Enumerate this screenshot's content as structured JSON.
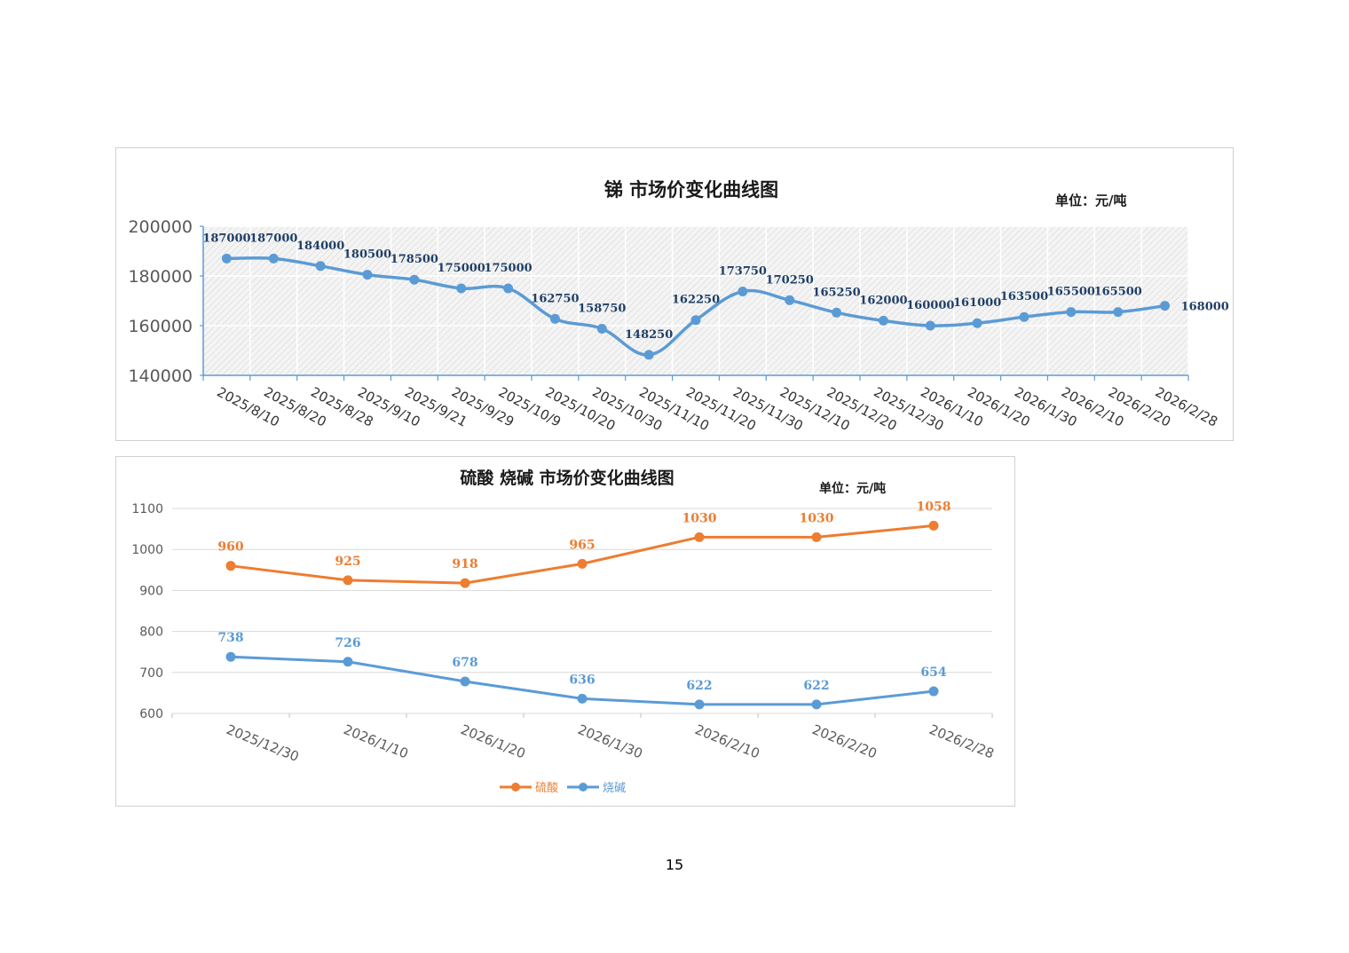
{
  "page_number": "15",
  "chart_data": [
    {
      "type": "line",
      "title": "锑 市场价变化曲线图",
      "unit_label": "单位：元/吨",
      "xlabel": "",
      "ylabel": "",
      "ylim": [
        140000,
        200000
      ],
      "yticks": [
        140000,
        160000,
        180000,
        200000
      ],
      "grid": "hatched plot area",
      "categories": [
        "2025/8/10",
        "2025/8/20",
        "2025/8/28",
        "2025/9/10",
        "2025/9/21",
        "2025/9/29",
        "2025/10/9",
        "2025/10/20",
        "2025/10/30",
        "2025/11/10",
        "2025/11/20",
        "2025/11/30",
        "2025/12/10",
        "2025/12/20",
        "2025/12/30",
        "2026/1/10",
        "2026/1/20",
        "2026/1/30",
        "2026/2/10",
        "2026/2/20",
        "2026/2/28"
      ],
      "series": [
        {
          "values": [
            187000,
            187000,
            184000,
            180500,
            178500,
            175000,
            175000,
            162750,
            158750,
            148250,
            162250,
            173750,
            170250,
            165250,
            162000,
            160000,
            161000,
            163500,
            165500,
            165500,
            168000
          ],
          "color": "#5b9bd5",
          "label_color": "#1f3f66"
        }
      ]
    },
    {
      "type": "line",
      "title": "硫酸 烧碱  市场价变化曲线图",
      "unit_label": "单位：元/吨",
      "xlabel": "",
      "ylabel": "",
      "ylim": [
        600,
        1100
      ],
      "yticks": [
        600,
        700,
        800,
        900,
        1000,
        1100
      ],
      "grid": "horizontal",
      "legend": "bottom",
      "categories": [
        "2025/12/30",
        "2026/1/10",
        "2026/1/20",
        "2026/1/30",
        "2026/2/10",
        "2026/2/20",
        "2026/2/28"
      ],
      "series": [
        {
          "name": "硫酸",
          "values": [
            960,
            925,
            918,
            965,
            1030,
            1030,
            1058
          ],
          "color": "#ed7d31"
        },
        {
          "name": "烧碱",
          "values": [
            738,
            726,
            678,
            636,
            622,
            622,
            654
          ],
          "color": "#5b9bd5"
        }
      ]
    }
  ]
}
